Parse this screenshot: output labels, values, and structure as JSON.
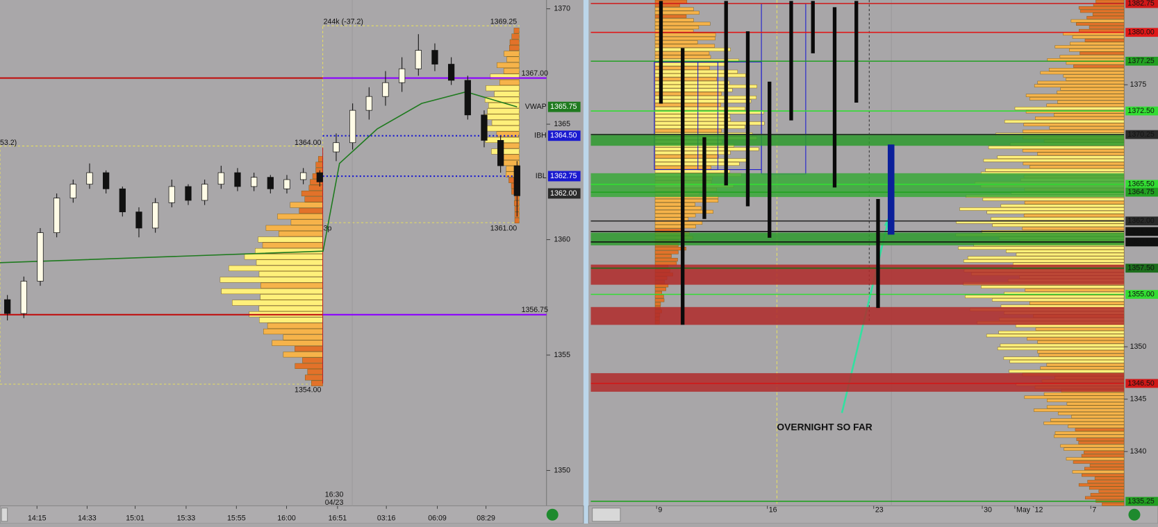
{
  "chart_data": [
    {
      "type": "candlestick",
      "open": [
        1357.4,
        1356.8,
        1358.2,
        1360.3,
        1361.8,
        1362.4,
        1362.9,
        1362.2,
        1361.2,
        1360.5,
        1361.6,
        1362.3,
        1361.7,
        1362.4,
        1362.9,
        1362.3,
        1362.7,
        1362.2,
        1362.6,
        1362.9,
        1363.8,
        1364.2,
        1365.6,
        1366.2,
        1366.8,
        1367.4,
        1368.2,
        1367.6,
        1366.9,
        1365.4,
        1364.3,
        1363.2
      ],
      "high": [
        1357.6,
        1358.4,
        1360.5,
        1362.0,
        1362.6,
        1363.3,
        1363.0,
        1362.3,
        1361.4,
        1361.8,
        1362.6,
        1362.4,
        1362.6,
        1363.2,
        1363.1,
        1362.9,
        1362.8,
        1362.8,
        1363.1,
        1363.0,
        1364.6,
        1365.9,
        1366.6,
        1367.3,
        1367.9,
        1368.9,
        1368.5,
        1367.9,
        1367.1,
        1365.6,
        1364.5,
        1363.4
      ],
      "low": [
        1356.5,
        1356.6,
        1358.0,
        1360.1,
        1361.6,
        1362.2,
        1362.0,
        1361.0,
        1360.1,
        1360.3,
        1361.4,
        1361.5,
        1361.5,
        1362.2,
        1362.1,
        1362.1,
        1362.0,
        1362.0,
        1362.4,
        1362.3,
        1363.4,
        1363.9,
        1365.2,
        1365.8,
        1366.4,
        1367.1,
        1367.3,
        1366.7,
        1365.2,
        1364.0,
        1362.9,
        1361.0
      ],
      "close": [
        1356.8,
        1358.2,
        1360.3,
        1361.8,
        1362.4,
        1362.9,
        1362.2,
        1361.2,
        1360.5,
        1361.6,
        1362.3,
        1361.7,
        1362.4,
        1362.9,
        1362.3,
        1362.7,
        1362.2,
        1362.6,
        1362.9,
        1362.5,
        1364.2,
        1365.6,
        1366.2,
        1366.8,
        1367.4,
        1368.2,
        1367.6,
        1366.9,
        1365.4,
        1364.3,
        1363.2,
        1361.9
      ],
      "xlim": [
        -0.45,
        31.13
      ],
      "xticks": [
        {
          "value": 1.8,
          "label": "14:15"
        },
        {
          "value": 4.85,
          "label": "14:33"
        },
        {
          "value": 7.77,
          "label": "15:01"
        },
        {
          "value": 10.87,
          "label": "15:33"
        },
        {
          "value": 13.93,
          "label": "15:55"
        },
        {
          "value": 16.98,
          "label": "16:00"
        },
        {
          "value": 20.08,
          "label": "16:51"
        },
        {
          "value": 23.05,
          "label": "03:16"
        },
        {
          "value": 26.15,
          "label": "06:09"
        },
        {
          "value": 29.11,
          "label": "08:29"
        }
      ],
      "ylim": [
        1348.5,
        1370.38
      ],
      "yticks": [
        1370,
        1365,
        1360,
        1355,
        1350
      ],
      "lines": [
        {
          "color": "#1e7a1e",
          "x": [
            -0.45,
            19.2,
            20.2,
            22.5,
            25.2,
            27.9,
            31
          ],
          "values": [
            1359.0,
            1359.5,
            1363.3,
            1364.8,
            1365.9,
            1366.4,
            1365.75
          ]
        }
      ],
      "levels": [
        {
          "name": "VWAP",
          "label": "1365.75",
          "value": 1365.75,
          "color": "#1f7a1f",
          "line": "none"
        },
        {
          "name": "IBH",
          "label": "1364.50",
          "value": 1364.5,
          "color": "#1a1ad0",
          "line": "dotted"
        },
        {
          "name": "IBL",
          "label": "1362.75",
          "value": 1362.75,
          "color": "#1a1ad0",
          "line": "dotted"
        },
        {
          "label": "1362.00",
          "value": 1362,
          "color": "#2b2b2b",
          "line": "none"
        },
        {
          "label": "1367.00",
          "value": 1367,
          "color": "#8a00ff",
          "line": "solid"
        },
        {
          "label": "1356.75",
          "value": 1356.75,
          "color": "#8a00ff",
          "line": "solid"
        }
      ],
      "annotations": {
        "volume": "244k (-37.2)",
        "session_high": "1369.25",
        "prior_high": "1364.00",
        "prior_note": "53.2)",
        "period": "3p",
        "session_low": "1361.00",
        "prior_low": "1354.00",
        "time": "16:30",
        "date": "04/23"
      }
    },
    {
      "type": "range_bar",
      "x": [
        0,
        1,
        2,
        3,
        4,
        5,
        6,
        7,
        8,
        9,
        10,
        10.6
      ],
      "high": [
        1383,
        1378.5,
        1370,
        1383,
        1380.1,
        1375.3,
        1383,
        1383,
        1382.4,
        1383,
        1364.1,
        1369.3
      ],
      "low": [
        1373.2,
        1352.1,
        1362.2,
        1365.4,
        1363.4,
        1360.4,
        1371.6,
        1378,
        1365.2,
        1373.3,
        1353.7,
        1360.7
      ],
      "color": "#0a0a0a",
      "last_color": "#0b1f9a",
      "xlim": [
        -3.23,
        21.33
      ],
      "xticks": [
        {
          "value": -0.2,
          "label": "9"
        },
        {
          "value": 4.9,
          "label": "16"
        },
        {
          "value": 9.8,
          "label": "23"
        },
        {
          "value": 14.8,
          "label": "30"
        },
        {
          "value": 16.3,
          "label": "May `12"
        },
        {
          "value": 19.8,
          "label": "7"
        }
      ],
      "ylim": [
        1334.89,
        1383.09
      ],
      "yticks": [
        1375,
        1350,
        1345,
        1340
      ],
      "zones": [
        {
          "from": 1369.18,
          "to": 1370.32,
          "color": "#2e9a2e"
        },
        {
          "from": 1364.29,
          "to": 1366.56,
          "color": "#3aa83a"
        },
        {
          "from": 1359.68,
          "to": 1360.89,
          "color": "#2e9a2e"
        },
        {
          "from": 1355.92,
          "to": 1357.84,
          "color": "#b02a2a"
        },
        {
          "from": 1352.09,
          "to": 1353.79,
          "color": "#b02a2a"
        },
        {
          "from": 1345.71,
          "to": 1347.48,
          "color": "#b02a2a"
        }
      ],
      "levels": [
        {
          "label": "1382.75",
          "value": 1382.75,
          "color": "#d01818"
        },
        {
          "label": "1380.00",
          "value": 1380,
          "color": "#e01818"
        },
        {
          "label": "1377.25",
          "value": 1377.25,
          "color": "#22a022"
        },
        {
          "label": "1372.50",
          "value": 1372.5,
          "color": "#33dd33"
        },
        {
          "label": "1370.25",
          "value": 1370.25,
          "color": "#2a2a2a"
        },
        {
          "label": "1365.50",
          "value": 1365.5,
          "color": "#33dd33"
        },
        {
          "label": "1364.75",
          "value": 1364.75,
          "color": "#22a022"
        },
        {
          "label": "1362.00",
          "value": 1362,
          "color": "#2a2a2a"
        },
        {
          "label": "1361.00",
          "value": 1361,
          "color": "#111111"
        },
        {
          "label": "1360.00",
          "value": 1360,
          "color": "#111111"
        },
        {
          "label": "1357.50",
          "value": 1357.5,
          "color": "#1c6e1c"
        },
        {
          "label": "1355.00",
          "value": 1355,
          "color": "#33dd33"
        },
        {
          "label": "1346.50",
          "value": 1346.5,
          "color": "#d01818"
        },
        {
          "label": "1335.25",
          "value": 1335.25,
          "color": "#22a022"
        }
      ],
      "annotation": "OVERNIGHT SO FAR"
    }
  ]
}
